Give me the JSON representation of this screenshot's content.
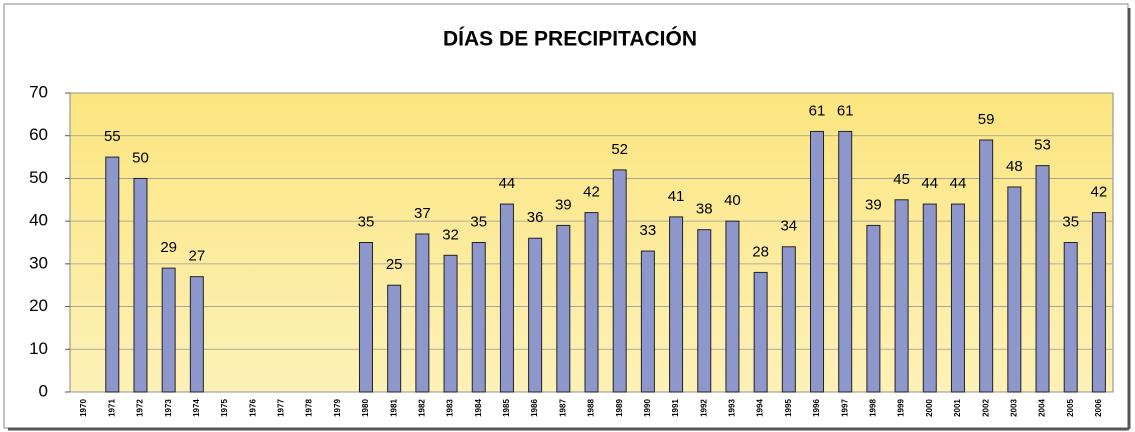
{
  "chart_data": {
    "type": "bar",
    "title": "DÍAS DE PRECIPITACIÓN",
    "categories": [
      "1970",
      "1971",
      "1972",
      "1973",
      "1974",
      "1975",
      "1976",
      "1977",
      "1978",
      "1979",
      "1980",
      "1981",
      "1982",
      "1983",
      "1984",
      "1985",
      "1986",
      "1987",
      "1988",
      "1989",
      "1990",
      "1991",
      "1992",
      "1993",
      "1994",
      "1995",
      "1996",
      "1997",
      "1998",
      "1999",
      "2000",
      "2001",
      "2002",
      "2003",
      "2004",
      "2005",
      "2006"
    ],
    "values": [
      null,
      55,
      50,
      29,
      27,
      null,
      null,
      null,
      null,
      null,
      35,
      25,
      37,
      32,
      35,
      44,
      36,
      39,
      42,
      52,
      33,
      41,
      38,
      40,
      28,
      34,
      61,
      61,
      39,
      45,
      44,
      44,
      59,
      48,
      53,
      35,
      42
    ],
    "color": "#8e97cc",
    "ylim": [
      0,
      70
    ],
    "yticks": [
      0,
      10,
      20,
      30,
      40,
      50,
      60,
      70
    ],
    "grid": true
  }
}
